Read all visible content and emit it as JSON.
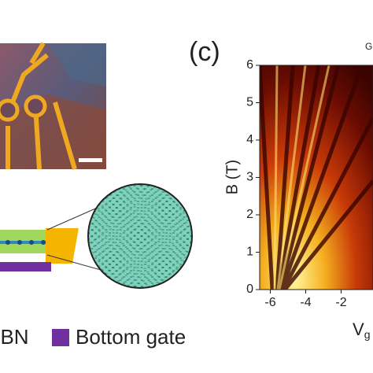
{
  "panel_c": {
    "label": "(c)",
    "corner_text": "G",
    "ylabel": "B (T)",
    "xlabel": "V",
    "xlabel_sub": "g",
    "ylim": [
      0,
      6
    ],
    "yticks": [
      0,
      1,
      2,
      3,
      4,
      5,
      6
    ],
    "xlim": [
      -6.6,
      -0.2
    ],
    "xticks": [
      -6,
      -4,
      -2
    ]
  },
  "legend": {
    "items": [
      "hBN",
      "Bottom gate"
    ]
  }
}
